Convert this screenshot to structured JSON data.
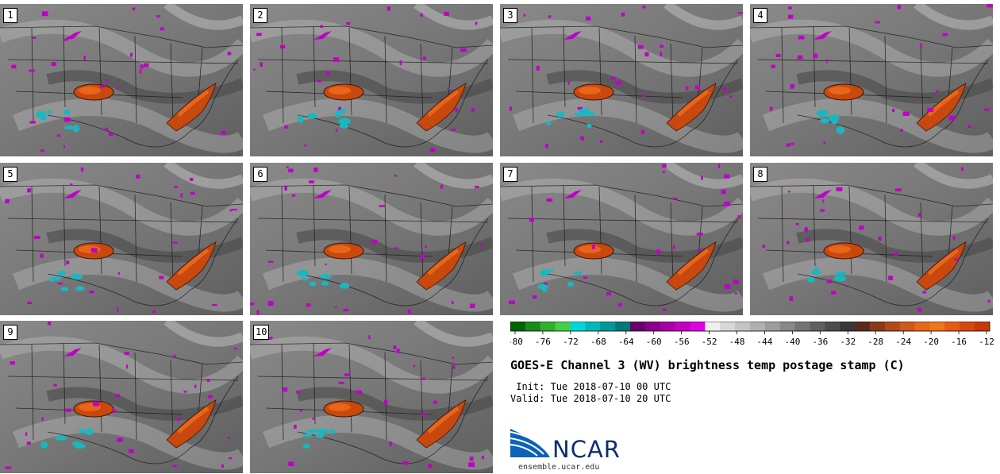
{
  "stamps": [
    {
      "label": "1"
    },
    {
      "label": "2"
    },
    {
      "label": "3"
    },
    {
      "label": "4"
    },
    {
      "label": "5"
    },
    {
      "label": "6"
    },
    {
      "label": "7"
    },
    {
      "label": "8"
    },
    {
      "label": "9"
    },
    {
      "label": "10"
    }
  ],
  "colorbar": {
    "ticks": [
      "-80",
      "-76",
      "-72",
      "-68",
      "-64",
      "-60",
      "-56",
      "-52",
      "-48",
      "-44",
      "-40",
      "-36",
      "-32",
      "-28",
      "-24",
      "-20",
      "-16",
      "-12"
    ],
    "colors": [
      "#006400",
      "#1a8a1a",
      "#2fb02f",
      "#45d045",
      "#00d8d8",
      "#00b8b8",
      "#009898",
      "#007878",
      "#6a006a",
      "#8a008a",
      "#a600a6",
      "#c200c2",
      "#e000e0",
      "#f0f0f0",
      "#d8d8d8",
      "#c4c4c4",
      "#b0b0b0",
      "#9c9c9c",
      "#888888",
      "#747474",
      "#606060",
      "#4c4c4c",
      "#383838",
      "#5a2a1a",
      "#8a3a1a",
      "#b04a1a",
      "#d0581a",
      "#e8661a",
      "#f0741a",
      "#e85a14",
      "#d8480e",
      "#c83808"
    ]
  },
  "title": "GOES-E Channel 3 (WV) brightness temp postage stamp (C)",
  "init": " Init: Tue 2018-07-10 00 UTC",
  "valid": "Valid: Tue 2018-07-10 20 UTC",
  "logo": {
    "word": "NCAR",
    "site": "ensemble.ucar.edu"
  }
}
